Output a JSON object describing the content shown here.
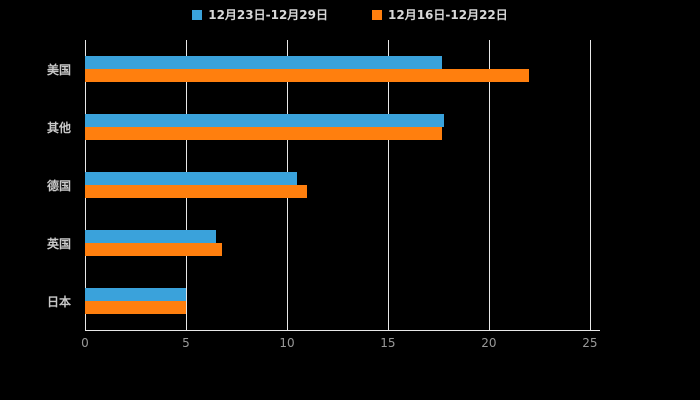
{
  "legend": {
    "items": [
      {
        "label": "12月23日-12月29日",
        "color": "#3AA2DB"
      },
      {
        "label": "12月16日-12月22日",
        "color": "#FF7F0E"
      }
    ]
  },
  "chart_data": {
    "type": "bar",
    "orientation": "horizontal",
    "title": "",
    "xlabel": "",
    "ylabel": "",
    "categories": [
      "美国",
      "其他",
      "德国",
      "英国",
      "日本"
    ],
    "series": [
      {
        "name": "12月23日-12月29日",
        "color": "#3AA2DB",
        "values": [
          17.7,
          17.8,
          10.5,
          6.5,
          5.0
        ]
      },
      {
        "name": "12月16日-12月22日",
        "color": "#FF7F0E",
        "values": [
          22.0,
          17.7,
          11.0,
          6.8,
          5.0
        ]
      }
    ],
    "xlim": [
      0,
      25.5
    ],
    "xticks": [
      0,
      5,
      10,
      15,
      20,
      25
    ],
    "grid": true,
    "legend_position": "top",
    "background": "#000000"
  },
  "colors": {
    "background": "#000000",
    "gridline": "#e8e8e8",
    "category_label": "#c9c9c9",
    "tick_label": "#999999",
    "legend_text": "#d9d9d9"
  }
}
